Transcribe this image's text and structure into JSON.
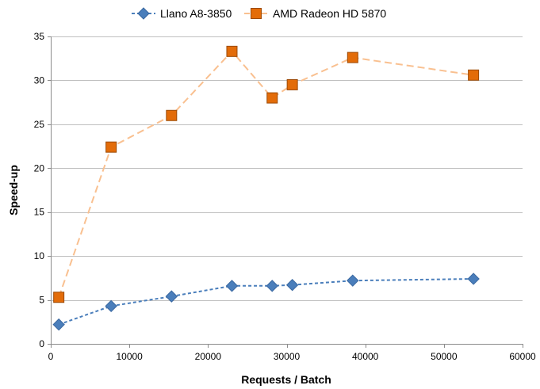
{
  "chart_data": {
    "type": "line",
    "xlabel": "Requests / Batch",
    "ylabel": "Speed-up",
    "xlim": [
      0,
      60000
    ],
    "ylim": [
      0,
      35
    ],
    "x_ticks": [
      0,
      10000,
      20000,
      30000,
      40000,
      50000,
      60000
    ],
    "y_ticks": [
      0,
      5,
      10,
      15,
      20,
      25,
      30,
      35
    ],
    "grid": "horizontal",
    "legend_position": "top",
    "series": [
      {
        "name": "Llano A8-3850",
        "color": "#4a7ebb",
        "marker": "diamond",
        "line_style": "dashed",
        "x": [
          1024,
          7680,
          15360,
          23040,
          28160,
          30720,
          38400,
          53760
        ],
        "y": [
          2.2,
          4.3,
          5.4,
          6.6,
          6.6,
          6.7,
          7.2,
          7.4
        ]
      },
      {
        "name": "AMD Radeon HD 5870",
        "color": "#f9c090",
        "marker_color": "#e36c09",
        "marker": "square",
        "line_style": "dashed",
        "x": [
          1024,
          7680,
          15360,
          23040,
          28160,
          30720,
          38400,
          53760
        ],
        "y": [
          5.3,
          22.4,
          26.0,
          33.3,
          28.0,
          29.5,
          32.6,
          30.6
        ]
      }
    ]
  }
}
